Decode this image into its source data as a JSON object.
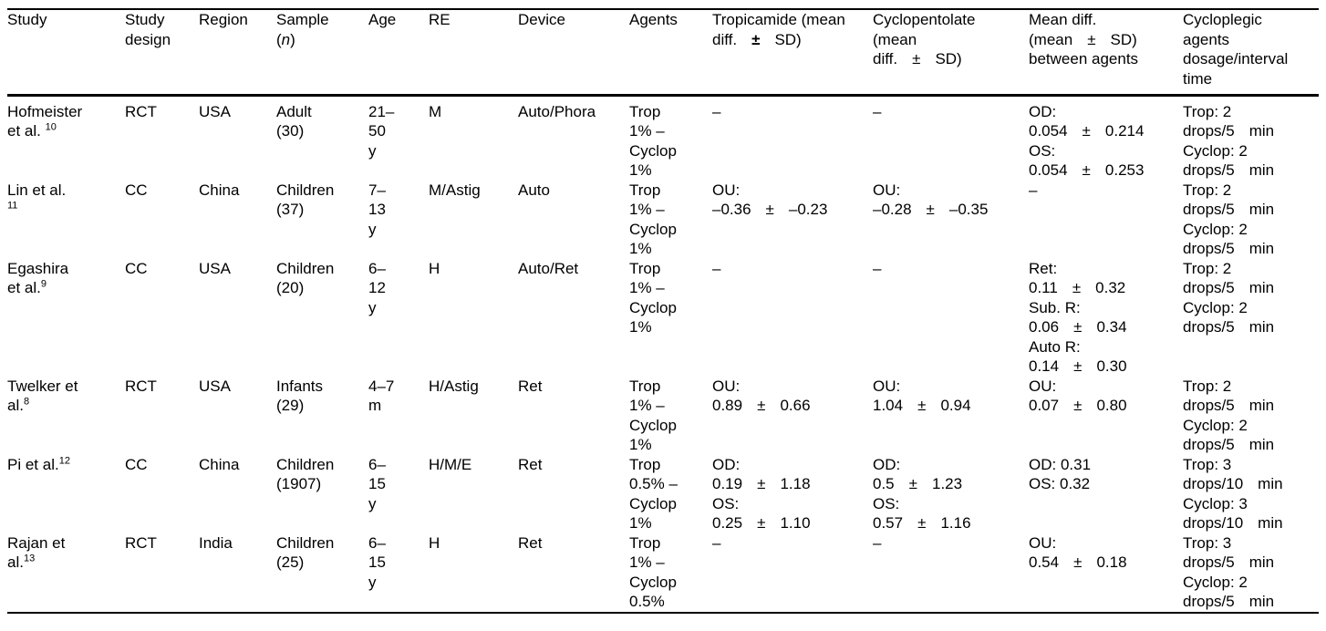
{
  "page": {
    "background": "#ffffff",
    "text_color": "#000000",
    "rule_color": "#000000"
  },
  "table": {
    "columns": [
      {
        "id": "study",
        "header": [
          [
            "Study"
          ]
        ]
      },
      {
        "id": "study_design",
        "header": [
          [
            "Study"
          ],
          [
            "design"
          ]
        ]
      },
      {
        "id": "region",
        "header": [
          [
            "Region"
          ]
        ]
      },
      {
        "id": "sample_n",
        "header": [
          [
            "Sample"
          ],
          [
            "(",
            {
              "t": "n",
              "i": true
            },
            ")"
          ]
        ]
      },
      {
        "id": "age",
        "header": [
          [
            "Age"
          ]
        ]
      },
      {
        "id": "re",
        "header": [
          [
            "RE"
          ]
        ]
      },
      {
        "id": "device",
        "header": [
          [
            "Device"
          ]
        ]
      },
      {
        "id": "agents",
        "header": [
          [
            "Agents"
          ]
        ]
      },
      {
        "id": "tropicamide",
        "header": [
          [
            "Tropicamide (mean"
          ],
          {
            "spread": [
              "diff.",
              {
                "t": "±",
                "b": true
              },
              "SD)"
            ]
          }
        ]
      },
      {
        "id": "cyclopentolate",
        "header": [
          [
            "Cyclopentolate"
          ],
          [
            "(mean"
          ],
          {
            "spread": [
              "diff.",
              "±",
              "SD)"
            ]
          }
        ]
      },
      {
        "id": "mean_diff",
        "header": [
          [
            "Mean diff."
          ],
          {
            "spread": [
              "(mean",
              "±",
              "SD)"
            ]
          },
          [
            "between agents"
          ]
        ]
      },
      {
        "id": "dosage",
        "header": [
          [
            "Cycloplegic"
          ],
          [
            "agents"
          ],
          [
            "dosage/interval"
          ],
          [
            "time"
          ]
        ]
      }
    ],
    "rows": [
      {
        "key": "hofmeister",
        "cells": [
          [
            [
              "Hofmeister"
            ],
            [
              "et al. ",
              {
                "t": "10",
                "sup": true
              }
            ]
          ],
          [
            [
              "RCT"
            ]
          ],
          [
            [
              "USA"
            ]
          ],
          [
            [
              "Adult"
            ],
            [
              "(30)"
            ]
          ],
          [
            [
              "21–"
            ],
            [
              "50"
            ],
            [
              "y"
            ]
          ],
          [
            [
              "M"
            ]
          ],
          [
            [
              "Auto/Phora"
            ]
          ],
          [
            [
              "Trop"
            ],
            [
              "1% –"
            ],
            [
              "Cyclop"
            ],
            [
              "1%"
            ]
          ],
          [
            [
              "–"
            ]
          ],
          [
            [
              "–"
            ]
          ],
          [
            [
              "OD:"
            ],
            {
              "spread": [
                "0.054",
                "±",
                "0.214"
              ]
            },
            [
              "OS:"
            ],
            {
              "spread": [
                "0.054",
                "±",
                "0.253"
              ]
            }
          ],
          [
            [
              "Trop: 2"
            ],
            {
              "spread": [
                "drops/5",
                "min"
              ]
            },
            [
              "Cyclop: 2"
            ],
            {
              "spread": [
                "drops/5",
                "min"
              ]
            }
          ]
        ]
      },
      {
        "key": "lin",
        "cells": [
          [
            [
              "Lin et al."
            ],
            [
              {
                "t": "11",
                "sup": true
              }
            ]
          ],
          [
            [
              "CC"
            ]
          ],
          [
            [
              "China"
            ]
          ],
          [
            [
              "Children"
            ],
            [
              "(37)"
            ]
          ],
          [
            [
              "7–"
            ],
            [
              "13"
            ],
            [
              "y"
            ]
          ],
          [
            [
              "M/Astig"
            ]
          ],
          [
            [
              "Auto"
            ]
          ],
          [
            [
              "Trop"
            ],
            [
              "1% –"
            ],
            [
              "Cyclop"
            ],
            [
              "1%"
            ]
          ],
          [
            [
              "OU:"
            ],
            {
              "spread": [
                "–0.36",
                "±",
                "–0.23"
              ]
            }
          ],
          [
            [
              "OU:"
            ],
            {
              "spread": [
                "–0.28",
                "±",
                "–0.35"
              ]
            }
          ],
          [
            [
              "–"
            ]
          ],
          [
            [
              "Trop: 2"
            ],
            {
              "spread": [
                "drops/5",
                "min"
              ]
            },
            [
              "Cyclop: 2"
            ],
            {
              "spread": [
                "drops/5",
                "min"
              ]
            }
          ]
        ]
      },
      {
        "key": "egashira",
        "cells": [
          [
            [
              "Egashira"
            ],
            [
              "et al.",
              {
                "t": "9",
                "sup": true
              }
            ]
          ],
          [
            [
              "CC"
            ]
          ],
          [
            [
              "USA"
            ]
          ],
          [
            [
              "Children"
            ],
            [
              "(20)"
            ]
          ],
          [
            [
              "6–"
            ],
            [
              "12"
            ],
            [
              "y"
            ]
          ],
          [
            [
              "H"
            ]
          ],
          [
            [
              "Auto/Ret"
            ]
          ],
          [
            [
              "Trop"
            ],
            [
              "1% –"
            ],
            [
              "Cyclop"
            ],
            [
              "1%"
            ]
          ],
          [
            [
              "–"
            ]
          ],
          [
            [
              "–"
            ]
          ],
          [
            [
              "Ret:"
            ],
            {
              "spread": [
                "0.11",
                "±",
                "0.32"
              ]
            },
            [
              "Sub. R:"
            ],
            {
              "spread": [
                "0.06",
                "±",
                "0.34"
              ]
            },
            [
              "Auto R:"
            ],
            {
              "spread": [
                "0.14",
                "±",
                "0.30"
              ]
            }
          ],
          [
            [
              "Trop: 2"
            ],
            {
              "spread": [
                "drops/5",
                "min"
              ]
            },
            [
              "Cyclop: 2"
            ],
            {
              "spread": [
                "drops/5",
                "min"
              ]
            }
          ]
        ]
      },
      {
        "key": "twelker",
        "cells": [
          [
            [
              "Twelker et"
            ],
            [
              "al.",
              {
                "t": "8",
                "sup": true
              }
            ]
          ],
          [
            [
              "RCT"
            ]
          ],
          [
            [
              "USA"
            ]
          ],
          [
            [
              "Infants"
            ],
            [
              "(29)"
            ]
          ],
          [
            [
              "4–7"
            ],
            [
              "m"
            ]
          ],
          [
            [
              "H/Astig"
            ]
          ],
          [
            [
              "Ret"
            ]
          ],
          [
            [
              "Trop"
            ],
            [
              "1% –"
            ],
            [
              "Cyclop"
            ],
            [
              "1%"
            ]
          ],
          [
            [
              "OU:"
            ],
            {
              "spread": [
                "0.89",
                "±",
                "0.66"
              ]
            }
          ],
          [
            [
              "OU:"
            ],
            {
              "spread": [
                "1.04",
                "±",
                "0.94"
              ]
            }
          ],
          [
            [
              "OU:"
            ],
            {
              "spread": [
                "0.07",
                "±",
                "0.80"
              ]
            }
          ],
          [
            [
              "Trop: 2"
            ],
            {
              "spread": [
                "drops/5",
                "min"
              ]
            },
            [
              "Cyclop: 2"
            ],
            {
              "spread": [
                "drops/5",
                "min"
              ]
            }
          ]
        ]
      },
      {
        "key": "pi",
        "cells": [
          [
            [
              "Pi et al.",
              {
                "t": "12",
                "sup": true
              }
            ]
          ],
          [
            [
              "CC"
            ]
          ],
          [
            [
              "China"
            ]
          ],
          [
            [
              "Children"
            ],
            [
              "(1907)"
            ]
          ],
          [
            [
              "6–"
            ],
            [
              "15"
            ],
            [
              "y"
            ]
          ],
          [
            [
              "H/M/E"
            ]
          ],
          [
            [
              "Ret"
            ]
          ],
          [
            [
              "Trop"
            ],
            [
              "0.5% –"
            ],
            [
              "Cyclop"
            ],
            [
              "1%"
            ]
          ],
          [
            [
              "OD:"
            ],
            {
              "spread": [
                "0.19",
                "±",
                "1.18"
              ]
            },
            [
              "OS:"
            ],
            {
              "spread": [
                "0.25",
                "±",
                "1.10"
              ]
            }
          ],
          [
            [
              "OD:"
            ],
            {
              "spread": [
                "0.5",
                "±",
                "1.23"
              ]
            },
            [
              "OS:"
            ],
            {
              "spread": [
                "0.57",
                "±",
                "1.16"
              ]
            }
          ],
          [
            [
              "OD: 0.31"
            ],
            [
              "OS: 0.32"
            ]
          ],
          [
            [
              "Trop: 3"
            ],
            {
              "spread": [
                "drops/10",
                "min"
              ]
            },
            [
              "Cyclop: 3"
            ],
            {
              "spread": [
                "drops/10",
                "min"
              ]
            }
          ]
        ]
      },
      {
        "key": "rajan",
        "cells": [
          [
            [
              "Rajan et"
            ],
            [
              "al.",
              {
                "t": "13",
                "sup": true
              }
            ]
          ],
          [
            [
              "RCT"
            ]
          ],
          [
            [
              "India"
            ]
          ],
          [
            [
              "Children"
            ],
            [
              "(25)"
            ]
          ],
          [
            [
              "6–"
            ],
            [
              "15"
            ],
            [
              "y"
            ]
          ],
          [
            [
              "H"
            ]
          ],
          [
            [
              "Ret"
            ]
          ],
          [
            [
              "Trop"
            ],
            [
              "1% –"
            ],
            [
              "Cyclop"
            ],
            [
              "0.5%"
            ]
          ],
          [
            [
              "–"
            ]
          ],
          [
            [
              "–"
            ]
          ],
          [
            [
              "OU:"
            ],
            {
              "spread": [
                "0.54",
                "±",
                "0.18"
              ]
            }
          ],
          [
            [
              "Trop: 3"
            ],
            {
              "spread": [
                "drops/5",
                "min"
              ]
            },
            [
              "Cyclop: 2"
            ],
            {
              "spread": [
                "drops/5",
                "min"
              ]
            }
          ]
        ]
      }
    ]
  }
}
